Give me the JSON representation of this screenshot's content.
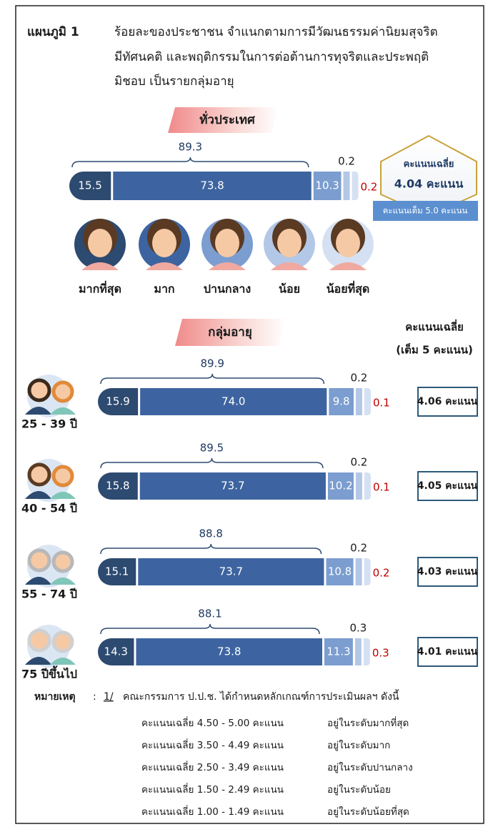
{
  "title": {
    "label": "แผนภูมิ 1",
    "lines": [
      "ร้อยละของประชาชน จำแนกตามการมีวัฒนธรรมค่านิยมสุจริต",
      "มีทัศนคติ และพฤติกรรมในการต่อต้านการทุจริตและประพฤติ",
      "มิชอบ  เป็นรายกลุ่มอายุ"
    ]
  },
  "age_section": {
    "title": "กลุ่มอายุ",
    "score_header": [
      "คะแนนเฉลี่ย",
      "(เต็ม 5 คะแนน)"
    ]
  },
  "chart_data": [
    {
      "type": "bar",
      "title": "ทั่วประเทศ",
      "categories": [
        "มากที่สุด",
        "มาก",
        "ปานกลาง",
        "น้อย",
        "น้อยที่สุด"
      ],
      "values": [
        15.5,
        73.8,
        10.3,
        0.2,
        0.2
      ],
      "value_labels": [
        "15.5",
        "73.8",
        "10.3",
        "0.2",
        "0.2"
      ],
      "colors": [
        "#2d4a70",
        "#3d64a0",
        "#7b9dcf",
        "#b3c7e6",
        "#d5e1f2"
      ],
      "combined": 89.3,
      "score_title": "คะแนนเฉลี่ย",
      "score_label": "4.04 คะแนน",
      "score_note": "คะแนนเต็ม 5.0 คะแนน"
    },
    {
      "type": "bar",
      "name": "25 - 39 ปี",
      "values": [
        15.9,
        74.0,
        9.8,
        0.2,
        0.1
      ],
      "value_labels": [
        "15.9",
        "74.0",
        "9.8",
        "0.2",
        "0.1"
      ],
      "colors": [
        "#2d4a70",
        "#3d64a0",
        "#7b9dcf",
        "#b3c7e6",
        "#d5e1f2"
      ],
      "combined": 89.9,
      "score_label": "4.06 คะแนน"
    },
    {
      "type": "bar",
      "name": "40 - 54 ปี",
      "values": [
        15.8,
        73.7,
        10.2,
        0.2,
        0.1
      ],
      "value_labels": [
        "15.8",
        "73.7",
        "10.2",
        "0.2",
        "0.1"
      ],
      "colors": [
        "#2d4a70",
        "#3d64a0",
        "#7b9dcf",
        "#b3c7e6",
        "#d5e1f2"
      ],
      "combined": 89.5,
      "score_label": "4.05 คะแนน"
    },
    {
      "type": "bar",
      "name": "55 - 74 ปี",
      "values": [
        15.1,
        73.7,
        10.8,
        0.2,
        0.2
      ],
      "value_labels": [
        "15.1",
        "73.7",
        "10.8",
        "0.2",
        "0.2"
      ],
      "colors": [
        "#2d4a70",
        "#3d64a0",
        "#7b9dcf",
        "#b3c7e6",
        "#d5e1f2"
      ],
      "combined": 88.8,
      "score_label": "4.03 คะแนน"
    },
    {
      "type": "bar",
      "name": "75 ปีขึ้นไป",
      "values": [
        14.3,
        73.8,
        11.3,
        0.3,
        0.3
      ],
      "value_labels": [
        "14.3",
        "73.8",
        "11.3",
        "0.3",
        "0.3"
      ],
      "colors": [
        "#2d4a70",
        "#3d64a0",
        "#7b9dcf",
        "#b3c7e6",
        "#d5e1f2"
      ],
      "combined": 88.1,
      "score_label": "4.01 คะแนน"
    }
  ],
  "notes": {
    "label": "หมายเหตุ",
    "sep": ":",
    "ref": "1/",
    "text": "คณะกรรมการ ป.ป.ช. ได้กำหนดหลักเกณฑ์การประเมินผลฯ ดังนี้",
    "rows": [
      [
        "คะแนนเฉลี่ย 4.50 - 5.00 คะแนน",
        "อยู่ในระดับมากที่สุด"
      ],
      [
        "คะแนนเฉลี่ย 3.50 - 4.49 คะแนน",
        "อยู่ในระดับมาก"
      ],
      [
        "คะแนนเฉลี่ย 2.50 - 3.49 คะแนน",
        "อยู่ในระดับปานกลาง"
      ],
      [
        "คะแนนเฉลี่ย 1.50 - 2.49 คะแนน",
        "อยู่ในระดับน้อย"
      ],
      [
        "คะแนนเฉลี่ย 1.00 - 1.49 คะแนน",
        "อยู่ในระดับน้อยที่สุด"
      ]
    ]
  }
}
